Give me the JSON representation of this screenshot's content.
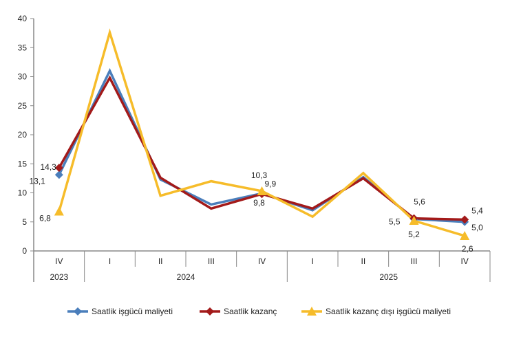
{
  "chart_data": {
    "type": "line",
    "ylim": [
      0,
      40
    ],
    "yticks": [
      0,
      5,
      10,
      15,
      20,
      25,
      30,
      35,
      40
    ],
    "grid": false,
    "legend_placement": "bottom",
    "quarters": [
      "IV",
      "I",
      "II",
      "III",
      "IV",
      "I",
      "II",
      "III",
      "IV"
    ],
    "years": [
      {
        "label": "2023",
        "span": 1
      },
      {
        "label": "2024",
        "span": 4
      },
      {
        "label": "2025",
        "span": 4
      }
    ],
    "series": [
      {
        "name": "Saatlik işgücü maliyeti",
        "color": "#4A7EBB",
        "marker": "diamond",
        "values": [
          13.1,
          31.0,
          12.3,
          8.0,
          9.9,
          7.0,
          12.7,
          5.5,
          5.0
        ]
      },
      {
        "name": "Saatlik kazanç",
        "color": "#A31A1A",
        "marker": "diamond",
        "values": [
          14.3,
          29.8,
          12.6,
          7.3,
          9.8,
          7.3,
          12.5,
          5.6,
          5.4
        ]
      },
      {
        "name": "Saatlik kazanç dışı işgücü maliyeti",
        "color": "#F6BC2A",
        "marker": "triangle",
        "values": [
          6.8,
          37.6,
          9.5,
          12.0,
          10.3,
          5.9,
          13.4,
          5.2,
          2.6
        ]
      }
    ],
    "data_labels": [
      {
        "text": "13,1",
        "series": 0,
        "index": 0
      },
      {
        "text": "14,3",
        "series": 1,
        "index": 0
      },
      {
        "text": "6,8",
        "series": 2,
        "index": 0
      },
      {
        "text": "9,9",
        "series": 0,
        "index": 4
      },
      {
        "text": "9,8",
        "series": 1,
        "index": 4
      },
      {
        "text": "10,3",
        "series": 2,
        "index": 4
      },
      {
        "text": "5,5",
        "series": 0,
        "index": 7
      },
      {
        "text": "5,6",
        "series": 1,
        "index": 7
      },
      {
        "text": "5,2",
        "series": 2,
        "index": 7
      },
      {
        "text": "5,0",
        "series": 0,
        "index": 8
      },
      {
        "text": "5,4",
        "series": 1,
        "index": 8
      },
      {
        "text": "2,6",
        "series": 2,
        "index": 8
      }
    ]
  }
}
